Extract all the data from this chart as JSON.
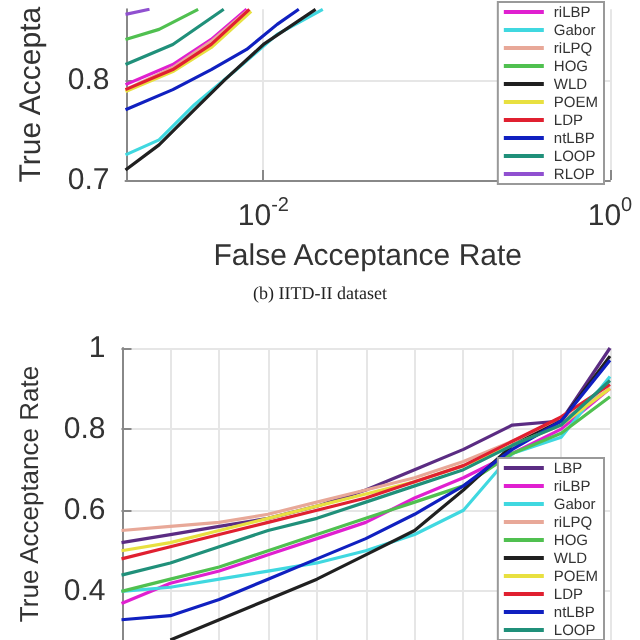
{
  "chart_data": [
    {
      "type": "line",
      "xlabel": "False Acceptance Rate",
      "ylabel": "True Accepta",
      "annotations": [
        "(b) IITD-II dataset"
      ],
      "log": "x",
      "xlim": [
        0.0016,
        1
      ],
      "xticks": [
        {
          "value": 0.01,
          "label": "10$^{-2}$"
        },
        {
          "value": 1,
          "label": "10$^{0}$"
        }
      ],
      "ylim": [
        0.7,
        0.87
      ],
      "yticks": [
        0.7,
        0.8
      ],
      "grid": true,
      "legend": "top right",
      "marker": "none",
      "series": [
        {
          "name": "riLBP",
          "color": "#e020d0",
          "x": [
            0.0016,
            0.003,
            0.005,
            0.008
          ],
          "values": [
            0.795,
            0.815,
            0.84,
            0.87
          ]
        },
        {
          "name": "Gabor",
          "color": "#40d8e0",
          "x": [
            0.0016,
            0.0025,
            0.004,
            0.007,
            0.012,
            0.022
          ],
          "values": [
            0.725,
            0.74,
            0.775,
            0.81,
            0.845,
            0.87
          ]
        },
        {
          "name": "riLPQ",
          "color": "#e8a898",
          "x": [
            0.0016,
            0.003,
            0.005,
            0.008
          ],
          "values": [
            0.79,
            0.812,
            0.838,
            0.868
          ]
        },
        {
          "name": "HOG",
          "color": "#50c050",
          "x": [
            0.0016,
            0.0025,
            0.0042
          ],
          "values": [
            0.84,
            0.85,
            0.87
          ]
        },
        {
          "name": "WLD",
          "color": "#202020",
          "x": [
            0.0016,
            0.0025,
            0.004,
            0.006,
            0.01,
            0.02
          ],
          "values": [
            0.71,
            0.735,
            0.77,
            0.8,
            0.835,
            0.87
          ]
        },
        {
          "name": "POEM",
          "color": "#e8e040",
          "x": [
            0.0016,
            0.003,
            0.005,
            0.0085
          ],
          "values": [
            0.788,
            0.808,
            0.832,
            0.868
          ]
        },
        {
          "name": "LDP",
          "color": "#e02030",
          "x": [
            0.0016,
            0.003,
            0.005,
            0.0083
          ],
          "values": [
            0.79,
            0.81,
            0.835,
            0.87
          ]
        },
        {
          "name": "ntLBP",
          "color": "#1020c0",
          "x": [
            0.0016,
            0.003,
            0.005,
            0.008,
            0.012,
            0.016
          ],
          "values": [
            0.77,
            0.79,
            0.81,
            0.83,
            0.855,
            0.87
          ]
        },
        {
          "name": "LOOP",
          "color": "#20907a",
          "x": [
            0.0016,
            0.003,
            0.0059
          ],
          "values": [
            0.815,
            0.835,
            0.87
          ]
        },
        {
          "name": "RLOP",
          "color": "#9050d0",
          "x": [
            0.0016,
            0.0022
          ],
          "values": [
            0.865,
            0.87
          ]
        }
      ]
    },
    {
      "type": "line",
      "ylabel": "True Acceptance Rate",
      "categories": [
        null,
        null,
        null,
        null,
        null,
        null,
        null,
        null,
        null,
        null,
        null
      ],
      "ylim": [
        0.28,
        1
      ],
      "yticks": [
        0.4,
        0.6,
        0.8,
        1
      ],
      "tick_labels": "y",
      "grid": true,
      "legend": "bottom right",
      "marker": "none",
      "series": [
        {
          "name": "LBP",
          "color": "#5b2c83",
          "values": [
            0.52,
            0.54,
            0.56,
            0.58,
            0.61,
            0.65,
            0.7,
            0.75,
            0.81,
            0.82,
            1.0
          ]
        },
        {
          "name": "riLBP",
          "color": "#e020d0",
          "values": [
            0.37,
            0.42,
            0.45,
            0.49,
            0.53,
            0.57,
            0.63,
            0.68,
            0.74,
            0.8,
            0.9
          ]
        },
        {
          "name": "Gabor",
          "color": "#40d8e0",
          "values": [
            0.4,
            0.41,
            0.43,
            0.45,
            0.47,
            0.5,
            0.54,
            0.6,
            0.74,
            0.78,
            0.93
          ]
        },
        {
          "name": "riLPQ",
          "color": "#e8a898",
          "values": [
            0.55,
            0.56,
            0.57,
            0.59,
            0.62,
            0.65,
            0.68,
            0.72,
            0.77,
            0.82,
            0.9
          ]
        },
        {
          "name": "HOG",
          "color": "#50c050",
          "values": [
            0.4,
            0.43,
            0.46,
            0.5,
            0.54,
            0.58,
            0.62,
            0.66,
            0.74,
            0.79,
            0.88
          ]
        },
        {
          "name": "WLD",
          "color": "#202020",
          "values": [
            null,
            0.28,
            0.33,
            0.38,
            0.43,
            0.49,
            0.55,
            0.65,
            0.76,
            0.82,
            0.98
          ]
        },
        {
          "name": "POEM",
          "color": "#e8e040",
          "values": [
            0.5,
            0.52,
            0.55,
            0.58,
            0.61,
            0.64,
            0.67,
            0.71,
            0.76,
            0.81,
            0.9
          ]
        },
        {
          "name": "LDP",
          "color": "#e02030",
          "values": [
            0.48,
            0.51,
            0.54,
            0.57,
            0.6,
            0.63,
            0.67,
            0.71,
            0.77,
            0.83,
            0.91
          ]
        },
        {
          "name": "ntLBP",
          "color": "#1020c0",
          "values": [
            0.33,
            0.34,
            0.38,
            0.43,
            0.48,
            0.53,
            0.59,
            0.66,
            0.75,
            0.82,
            0.97
          ]
        },
        {
          "name": "LOOP",
          "color": "#20907a",
          "values": [
            0.44,
            0.47,
            0.51,
            0.55,
            0.58,
            0.62,
            0.66,
            0.7,
            0.76,
            0.81,
            0.92
          ]
        }
      ]
    }
  ]
}
